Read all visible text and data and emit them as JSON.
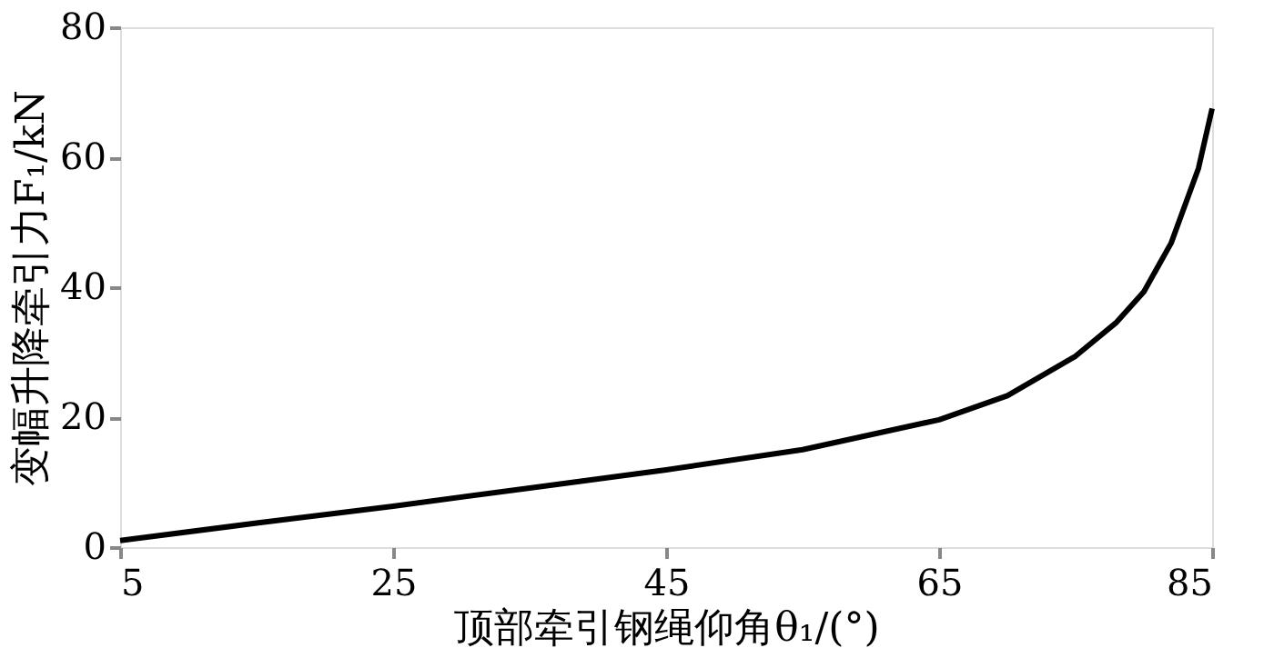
{
  "chart_data": {
    "type": "line",
    "xlabel": "顶部牵引钢绳仰角θ₁/(°)",
    "ylabel": "变幅升降牵引力F₁/kN",
    "x": [
      5,
      15,
      25,
      35,
      45,
      55,
      65,
      70,
      75,
      78,
      80,
      82,
      84,
      85
    ],
    "series": [
      {
        "color": "#000000",
        "values": [
          1,
          3.7,
          6.3,
          9.1,
          11.9,
          15,
          19.6,
          23.3,
          29.4,
          34.6,
          39.3,
          46.8,
          58.3,
          67.5
        ]
      }
    ],
    "xlim": [
      5,
      85
    ],
    "xticks": [
      5,
      25,
      45,
      65,
      85
    ],
    "ylim": [
      0,
      80
    ],
    "yticks": [
      0,
      20,
      40,
      60,
      80
    ],
    "grid": false,
    "line_style": "solid",
    "marker": "none"
  }
}
